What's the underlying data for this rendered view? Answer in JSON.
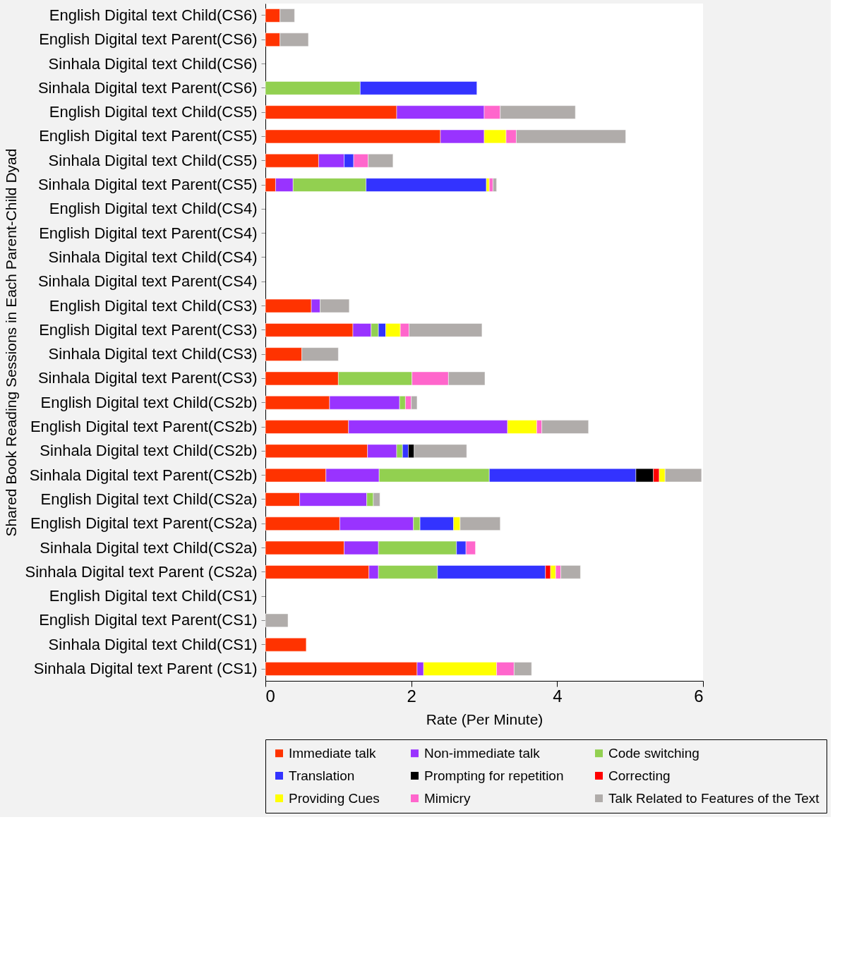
{
  "chart_data": {
    "type": "bar",
    "orientation": "horizontal",
    "stacked": true,
    "xlabel": "Rate (Per Minute)",
    "ylabel": "Shared Book Reading Sessions  in  Each Parent-Child Dyad",
    "categories": [
      "English Digital text Child(CS6)",
      "English Digital text Parent(CS6)",
      "Sinhala Digital text Child(CS6)",
      "Sinhala Digital text Parent(CS6)",
      "English Digital text Child(CS5)",
      "English Digital text Parent(CS5)",
      "Sinhala Digital text Child(CS5)",
      "Sinhala Digital text Parent(CS5)",
      "English Digital text Child(CS4)",
      "English Digital text Parent(CS4)",
      "Sinhala Digital text Child(CS4)",
      "Sinhala Digital text Parent(CS4)",
      "English Digital text Child(CS3)",
      "English Digital text Parent(CS3)",
      "Sinhala Digital text Child(CS3)",
      "Sinhala Digital text Parent(CS3)",
      "English Digital text Child(CS2b)",
      "English Digital text Parent(CS2b)",
      "Sinhala Digital text Child(CS2b)",
      "Sinhala Digital text Parent(CS2b)",
      "English Digital text Child(CS2a)",
      "English Digital text Parent(CS2a)",
      "Sinhala Digital text Child(CS2a)",
      "Sinhala Digital text Parent (CS2a)",
      "English Digital text Child(CS1)",
      "English Digital text Parent(CS1)",
      "Sinhala Digital text Child(CS1)",
      "Sinhala Digital text Parent (CS1)"
    ],
    "series": [
      {
        "name": "Immediate talk",
        "color": "#ff3300",
        "values": [
          0.2,
          0.2,
          null,
          null,
          1.8,
          2.4,
          0.73,
          0.14,
          null,
          null,
          null,
          null,
          0.63,
          1.2,
          0.5,
          1.0,
          0.88,
          1.14,
          1.4,
          0.83,
          0.47,
          1.02,
          1.08,
          1.42,
          null,
          null,
          0.56,
          2.08
        ]
      },
      {
        "name": "Non-immediate talk",
        "color": "#9933ff",
        "values": [
          null,
          null,
          null,
          null,
          1.2,
          0.6,
          0.35,
          0.24,
          null,
          null,
          null,
          null,
          0.12,
          0.25,
          null,
          null,
          0.96,
          2.18,
          0.4,
          0.73,
          0.92,
          1.01,
          0.47,
          0.13,
          null,
          null,
          null,
          0.09
        ]
      },
      {
        "name": "Code switching",
        "color": "#92d050",
        "values": [
          null,
          null,
          null,
          1.3,
          null,
          null,
          null,
          1.0,
          null,
          null,
          null,
          null,
          null,
          0.1,
          null,
          1.01,
          0.08,
          null,
          0.08,
          1.51,
          0.09,
          0.09,
          1.07,
          0.81,
          null,
          null,
          null,
          null
        ]
      },
      {
        "name": "Translation",
        "color": "#3333ff",
        "values": [
          null,
          null,
          null,
          1.6,
          null,
          null,
          0.13,
          1.65,
          null,
          null,
          null,
          null,
          null,
          0.1,
          null,
          null,
          null,
          null,
          0.08,
          2.01,
          null,
          0.46,
          0.13,
          1.48,
          null,
          null,
          null,
          null
        ]
      },
      {
        "name": "Prompting for repetition",
        "color": "#000000",
        "values": [
          null,
          null,
          null,
          null,
          null,
          null,
          null,
          null,
          null,
          null,
          null,
          null,
          null,
          null,
          null,
          null,
          null,
          null,
          0.08,
          0.24,
          null,
          null,
          null,
          null,
          null,
          null,
          null,
          null
        ]
      },
      {
        "name": "Correcting",
        "color": "#ff0000",
        "values": [
          null,
          null,
          null,
          null,
          null,
          null,
          null,
          null,
          null,
          null,
          null,
          null,
          null,
          null,
          null,
          null,
          null,
          null,
          null,
          0.08,
          null,
          null,
          null,
          0.07,
          null,
          null,
          null,
          null
        ]
      },
      {
        "name": "Providing Cues",
        "color": "#ffff00",
        "values": [
          null,
          null,
          null,
          null,
          null,
          0.3,
          null,
          0.04,
          null,
          null,
          null,
          null,
          null,
          0.2,
          null,
          null,
          null,
          0.4,
          null,
          0.08,
          null,
          0.09,
          null,
          0.07,
          null,
          null,
          null,
          1.0
        ]
      },
      {
        "name": "Mimicry",
        "color": "#ff66cc",
        "values": [
          null,
          null,
          null,
          null,
          0.22,
          0.14,
          0.2,
          0.05,
          null,
          null,
          null,
          null,
          null,
          0.12,
          null,
          0.5,
          0.08,
          0.07,
          null,
          null,
          null,
          null,
          0.13,
          0.07,
          null,
          null,
          null,
          0.24
        ]
      },
      {
        "name": "Talk Related to Features of the Text",
        "color": "#b0acaa",
        "values": [
          0.2,
          0.39,
          null,
          null,
          1.03,
          1.5,
          0.34,
          0.05,
          null,
          null,
          null,
          null,
          0.4,
          1.0,
          0.5,
          0.5,
          0.08,
          0.64,
          0.72,
          0.5,
          0.09,
          0.55,
          null,
          0.27,
          null,
          0.31,
          null,
          0.24
        ]
      }
    ],
    "xlim": [
      0,
      6
    ],
    "xticks": [
      0,
      2,
      4,
      6
    ],
    "grid": false,
    "legend": "bottom"
  }
}
